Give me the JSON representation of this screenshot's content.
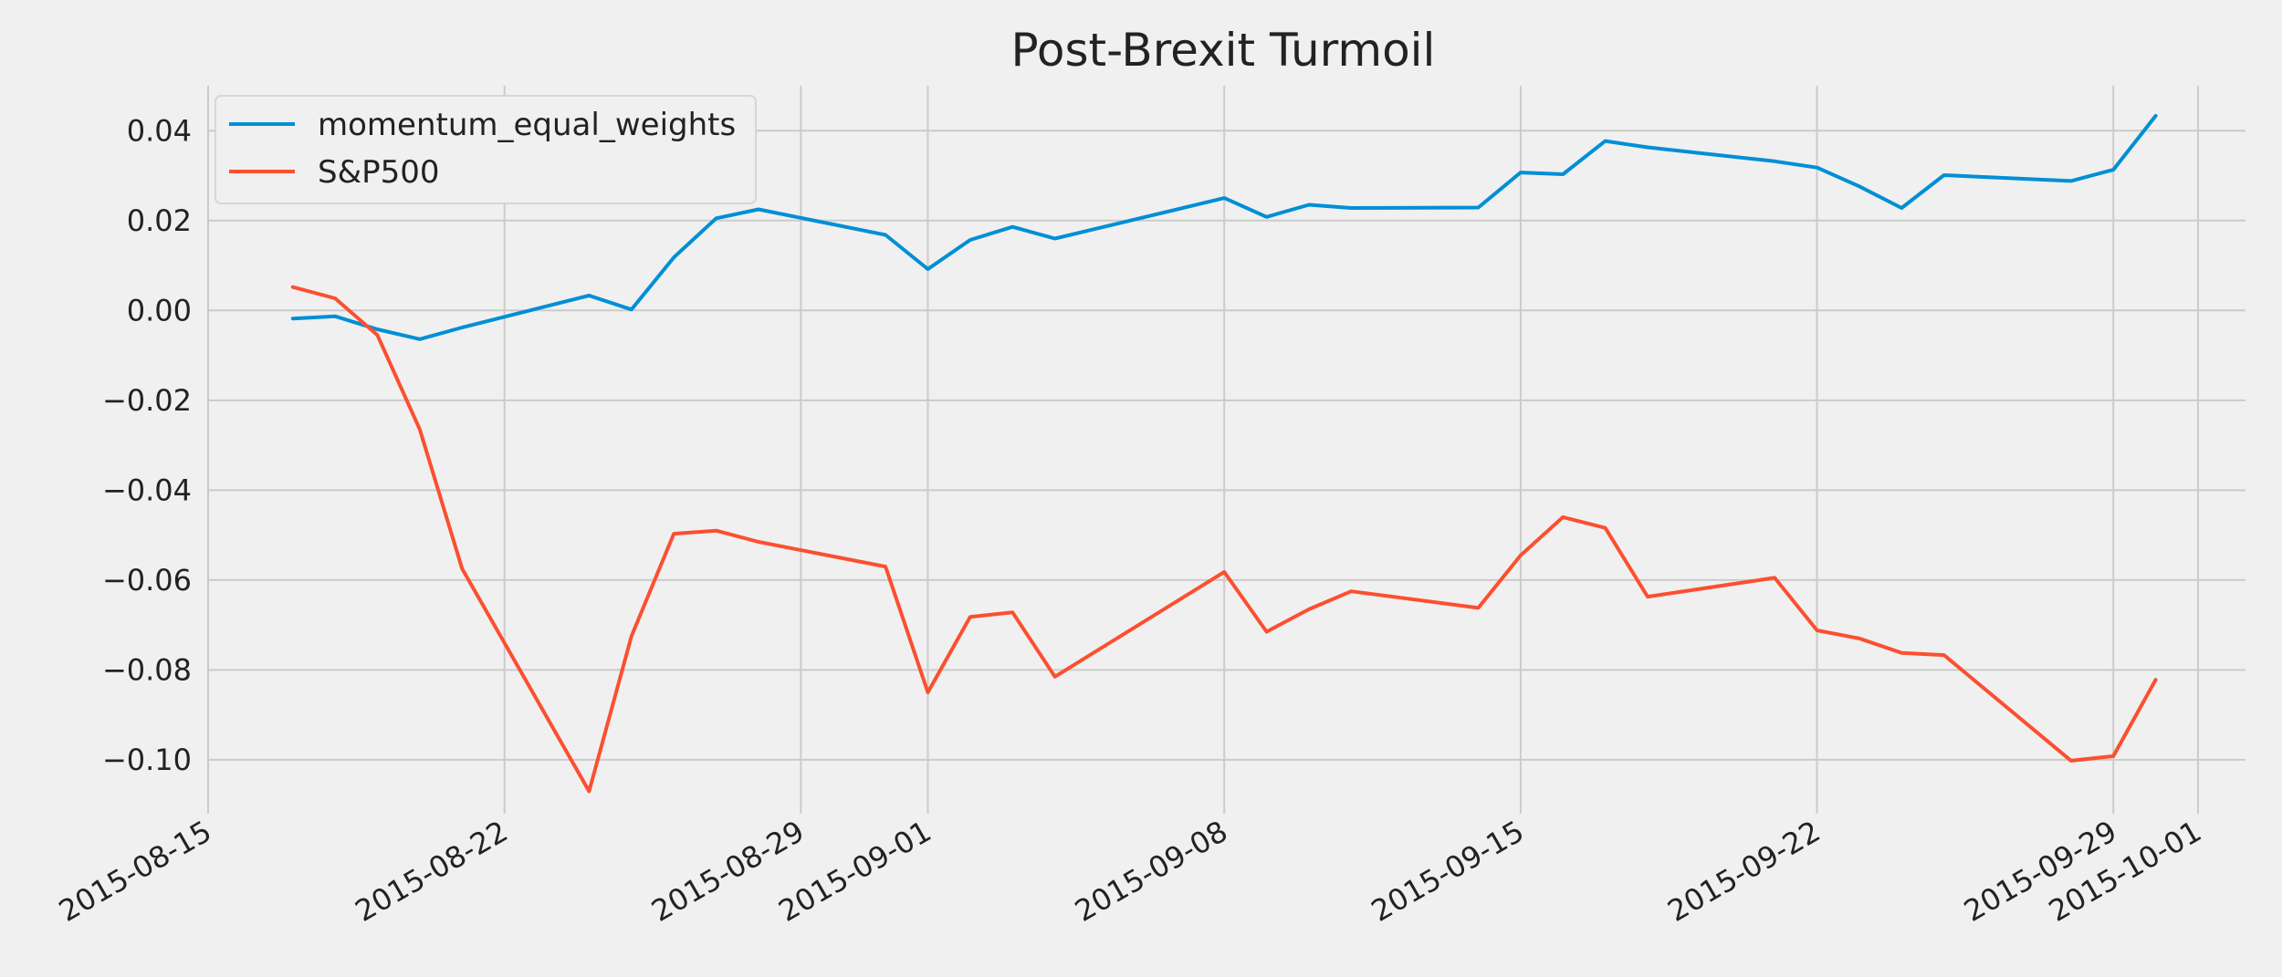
{
  "chart_data": {
    "type": "line",
    "title": "Post-Brexit Turmoil",
    "xlabel": "",
    "ylabel": "",
    "xlim": [
      "2015-08-15",
      "2015-10-01"
    ],
    "ylim": [
      -0.112,
      0.05
    ],
    "x_ticks": [
      "2015-08-15",
      "2015-08-22",
      "2015-08-29",
      "2015-09-01",
      "2015-09-08",
      "2015-09-15",
      "2015-09-22",
      "2015-09-29",
      "2015-10-01"
    ],
    "y_ticks": [
      0.04,
      0.02,
      0.0,
      -0.02,
      -0.04,
      -0.06,
      -0.08,
      -0.1
    ],
    "y_tick_labels": [
      "0.04",
      "0.02",
      "0.00",
      "−0.02",
      "−0.04",
      "−0.06",
      "−0.08",
      "−0.10"
    ],
    "grid": true,
    "legend_position": "top-left",
    "x": [
      "2015-08-17",
      "2015-08-18",
      "2015-08-19",
      "2015-08-20",
      "2015-08-21",
      "2015-08-24",
      "2015-08-25",
      "2015-08-26",
      "2015-08-27",
      "2015-08-28",
      "2015-08-31",
      "2015-09-01",
      "2015-09-02",
      "2015-09-03",
      "2015-09-04",
      "2015-09-08",
      "2015-09-09",
      "2015-09-10",
      "2015-09-11",
      "2015-09-14",
      "2015-09-15",
      "2015-09-16",
      "2015-09-17",
      "2015-09-18",
      "2015-09-21",
      "2015-09-22",
      "2015-09-23",
      "2015-09-24",
      "2015-09-25",
      "2015-09-28",
      "2015-09-29",
      "2015-09-30"
    ],
    "series": [
      {
        "name": "momentum_equal_weights",
        "color": "#008fd5",
        "values": [
          -0.0018,
          -0.0013,
          -0.0042,
          -0.0064,
          -0.0038,
          0.0033,
          0.0002,
          0.0118,
          0.0205,
          0.0225,
          0.0168,
          0.0092,
          0.0157,
          0.0186,
          0.016,
          0.025,
          0.0208,
          0.0235,
          0.0228,
          0.0229,
          0.0307,
          0.0303,
          0.0377,
          0.0363,
          0.0332,
          0.0318,
          0.0276,
          0.0228,
          0.0301,
          0.0288,
          0.0313,
          0.0433
        ]
      },
      {
        "name": "S&P500",
        "color": "#fc4f30",
        "values": [
          0.0052,
          0.0027,
          -0.0055,
          -0.0265,
          -0.0575,
          -0.107,
          -0.0725,
          -0.0497,
          -0.049,
          -0.0515,
          -0.057,
          -0.085,
          -0.0682,
          -0.0672,
          -0.0815,
          -0.0582,
          -0.0715,
          -0.0665,
          -0.0625,
          -0.0662,
          -0.0545,
          -0.046,
          -0.0484,
          -0.0637,
          -0.0595,
          -0.0712,
          -0.073,
          -0.0762,
          -0.0767,
          -0.1002,
          -0.0992,
          -0.0822
        ]
      }
    ]
  }
}
